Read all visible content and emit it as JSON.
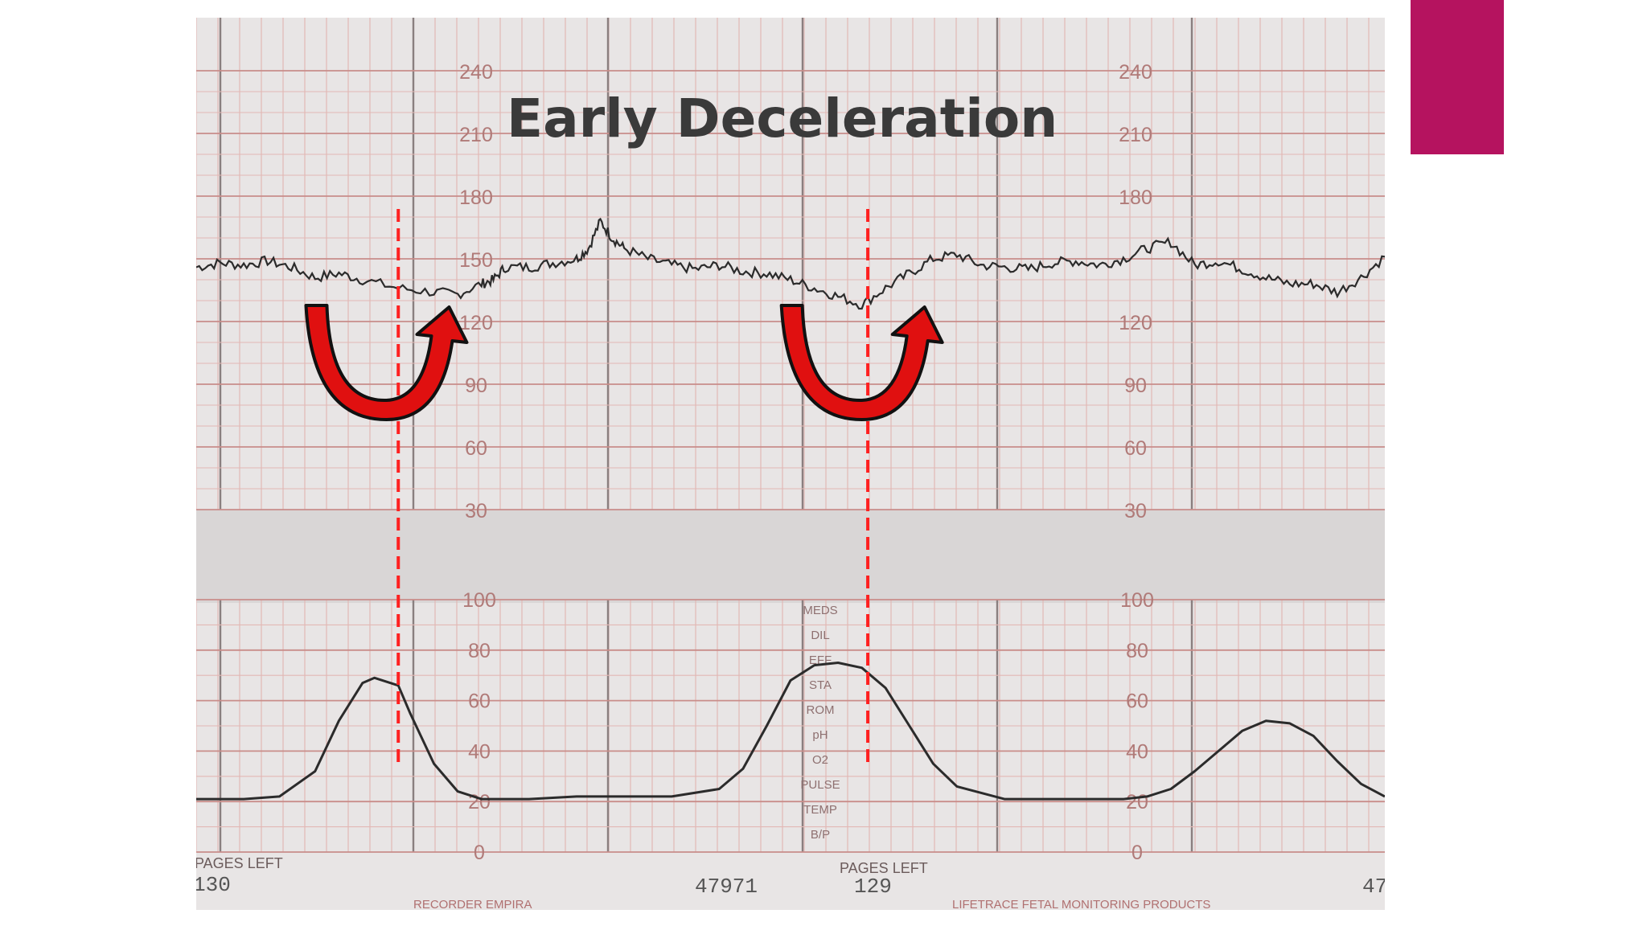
{
  "slide": {
    "accent_color": "#b5135f"
  },
  "chart_data": {
    "type": "line",
    "title": "Early Deceleration",
    "colors": {
      "paper": "#e8e5e5",
      "gap": "#d9d6d6",
      "grid_major": "#c98d8a",
      "grid_minor": "#e2b8b5",
      "trace": "#2b2b2b",
      "marker": "#ff2020",
      "arrow_fill": "#e01010"
    },
    "fhr_panel": {
      "ylim": [
        30,
        240
      ],
      "ticks": [
        "240",
        "210",
        "180",
        "150",
        "120",
        "90",
        "60",
        "30"
      ],
      "ticks_right": [
        "240",
        "210",
        "180",
        "",
        "120",
        "90",
        "60",
        "30"
      ],
      "trace": {
        "x": [
          0,
          2,
          4,
          6,
          8,
          10,
          12,
          14,
          17,
          20,
          22,
          24,
          25,
          26,
          28,
          30,
          32,
          33,
          34,
          35,
          36,
          38,
          40,
          42,
          44,
          46,
          48,
          50,
          52,
          54,
          56,
          58,
          60,
          62,
          64,
          66,
          68,
          70,
          72,
          74,
          76,
          78,
          80,
          82,
          84,
          86,
          88,
          90,
          92,
          94,
          96,
          98,
          100
        ],
        "y": [
          146,
          148,
          147,
          149,
          146,
          141,
          143,
          140,
          136,
          134,
          133,
          138,
          140,
          146,
          146,
          148,
          150,
          155,
          168,
          160,
          155,
          150,
          147,
          145,
          147,
          144,
          143,
          140,
          136,
          132,
          128,
          136,
          143,
          150,
          152,
          147,
          146,
          145,
          148,
          149,
          147,
          150,
          155,
          158,
          147,
          149,
          145,
          141,
          138,
          138,
          134,
          141,
          151
        ]
      }
    },
    "uc_panel": {
      "ylim": [
        0,
        100
      ],
      "ticks": [
        "100",
        "80",
        "60",
        "40",
        "20",
        "0"
      ],
      "trace": {
        "x": [
          0,
          4,
          7,
          10,
          12,
          14,
          15,
          17,
          18,
          20,
          22,
          24,
          28,
          32,
          36,
          40,
          44,
          46,
          48,
          50,
          52,
          54,
          56,
          58,
          60,
          62,
          64,
          68,
          72,
          76,
          78,
          80,
          82,
          84,
          86,
          88,
          90,
          92,
          94,
          96,
          98,
          100
        ],
        "y": [
          21,
          21,
          22,
          32,
          52,
          67,
          69,
          66,
          55,
          35,
          24,
          21,
          21,
          22,
          22,
          22,
          25,
          33,
          50,
          68,
          74,
          75,
          73,
          65,
          50,
          35,
          26,
          21,
          21,
          21,
          21,
          22,
          25,
          32,
          40,
          48,
          52,
          51,
          46,
          36,
          27,
          22
        ]
      }
    },
    "annotations": {
      "dashed_lines_x": [
        17,
        56.5
      ],
      "arrow_positions_x": [
        16,
        56
      ]
    },
    "footer_text": {
      "left_pages_label": "PAGES LEFT",
      "left_pages_value": "130",
      "center_number": "47971",
      "right_pages_label": "PAGES LEFT",
      "right_pages_value": "129",
      "right_number": "47",
      "bottom_left_text": "RECORDER EMPIRA",
      "bottom_right_text": "LIFETRACE FETAL MONITORING PRODUCTS"
    },
    "side_labels": [
      "MEDS",
      "DIL",
      "EFF",
      "STA",
      "ROM",
      "pH",
      "O2",
      "PULSE",
      "TEMP",
      "B/P"
    ]
  }
}
